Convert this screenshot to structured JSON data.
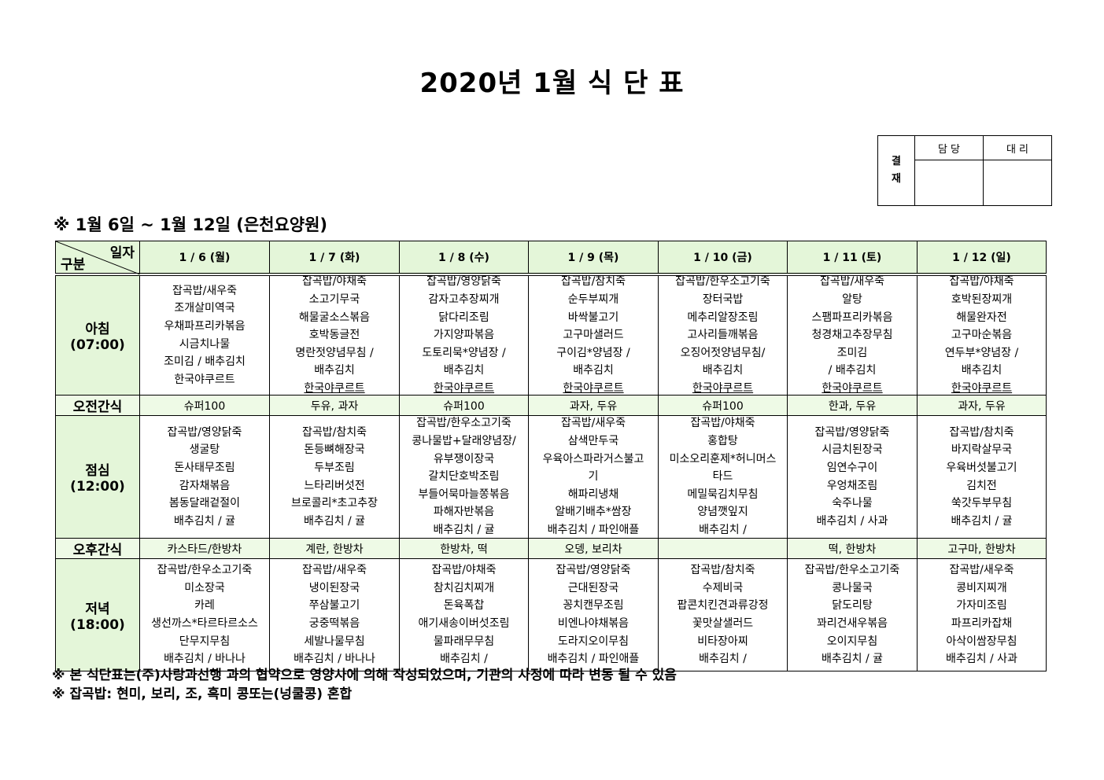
{
  "title": "2020년 1월 식 단 표",
  "approval": {
    "label": "결\n재",
    "label_chars": [
      "결",
      "재"
    ],
    "cols": [
      "담 당",
      "대 리"
    ]
  },
  "subtitle": "※ 1월 6일 ~ 1월 12일 (은천요양원)",
  "corner": {
    "top": "일자",
    "bottom": "구분"
  },
  "days": [
    "1 / 6 (월)",
    "1 / 7 (화)",
    "1 / 8 (수)",
    "1 / 9 (목)",
    "1 / 10 (금)",
    "1 / 11 (토)",
    "1 / 12 (일)"
  ],
  "rows": [
    {
      "label": "아침",
      "time": "(07:00)",
      "type": "meal",
      "underline_last": [
        false,
        true,
        true,
        true,
        true,
        true,
        true
      ],
      "cells": [
        [
          "잡곡밥/새우죽",
          "조개살미역국",
          "우채파프리카볶음",
          "시금치나물",
          "조미김 / 배추김치",
          "한국야쿠르트"
        ],
        [
          "잡곡밥/야채죽",
          "소고기무국",
          "해물굴소스볶음",
          "호박동글전",
          "명란젓양념무침 /",
          "배추김치",
          "한국야쿠르트"
        ],
        [
          "잡곡밥/영양닭죽",
          "감자고추장찌개",
          "닭다리조림",
          "가지양파볶음",
          "도토리묵*양념장 /",
          "배추김치",
          "한국야쿠르트"
        ],
        [
          "잡곡밥/참치죽",
          "순두부찌개",
          "바싹불고기",
          "고구마샐러드",
          "구이김*양념장 /",
          "배추김치",
          "한국야쿠르트"
        ],
        [
          "잡곡밥/한우소고기죽",
          "장터국밥",
          "메추리알장조림",
          "고사리들깨볶음",
          "오징어젓양념무침/",
          "배추김치",
          "한국야쿠르트"
        ],
        [
          "잡곡밥/새우죽",
          "알탕",
          "스팸파프리카볶음",
          "청경채고추장무침",
          "조미김",
          "/ 배추김치",
          "한국야쿠르트"
        ],
        [
          "잡곡밥/야채죽",
          "호박된장찌개",
          "해물완자전",
          "고구마순볶음",
          "연두부*양념장 /",
          "배추김치",
          "한국야쿠르트"
        ]
      ]
    },
    {
      "label": "오전간식",
      "type": "snack",
      "cells": [
        "슈퍼100",
        "두유, 과자",
        "슈퍼100",
        "과자, 두유",
        "슈퍼100",
        "한과, 두유",
        "과자, 두유"
      ]
    },
    {
      "label": "점심",
      "time": "(12:00)",
      "type": "meal",
      "cells": [
        [
          "잡곡밥/영양닭죽",
          "생굴탕",
          "돈사태무조림",
          "감자채볶음",
          "봄동달래겉절이",
          "배추김치 / 귤"
        ],
        [
          "잡곡밥/참치죽",
          "돈등뼈해장국",
          "두부조림",
          "느타리버섯전",
          "브로콜리*초고추장",
          "배추김치 / 귤"
        ],
        [
          "잡곡밥/한우소고기죽",
          "콩나물밥+달래양념장/",
          "유부쟁이장국",
          "갈치단호박조림",
          "부들어묵마늘쫑볶음",
          "파해자반볶음",
          "배추김치 / 귤"
        ],
        [
          "잡곡밥/새우죽",
          "삼색만두국",
          "우육아스파라거스불고",
          "기",
          "해파리냉채",
          "알배기배추*쌈장",
          "배추김치 / 파인애플"
        ],
        [
          "잡곡밥/야채죽",
          "홍합탕",
          "미소오리훈제*허니머스",
          "타드",
          "메밀묵김치무침",
          "양념깻잎지",
          "배추김치 /"
        ],
        [
          "잡곡밥/영양닭죽",
          "시금치된장국",
          "임연수구이",
          "우엉채조림",
          "숙주나물",
          "배추김치 / 사과"
        ],
        [
          "잡곡밥/참치죽",
          "바지락살무국",
          "우육버섯불고기",
          "김치전",
          "쑥갓두부무침",
          "배추김치 / 귤"
        ]
      ]
    },
    {
      "label": "오후간식",
      "type": "snack",
      "cells": [
        "카스타드/한방차",
        "계란, 한방차",
        "한방차, 떡",
        "오뎅, 보리차",
        "",
        "떡, 한방차",
        "고구마, 한방차"
      ]
    },
    {
      "label": "저녁",
      "time": "(18:00)",
      "type": "meal",
      "cells": [
        [
          "잡곡밥/한우소고기죽",
          "미소장국",
          "카레",
          "생선까스*타르타르소스",
          "단무지무침",
          "배추김치 / 바나나"
        ],
        [
          "잡곡밥/새우죽",
          "냉이된장국",
          "쭈삼불고기",
          "궁중떡볶음",
          "세발나물무침",
          "배추김치 / 바나나"
        ],
        [
          "잡곡밥/야채죽",
          "참치김치찌개",
          "돈육폭찹",
          "애기새송이버섯조림",
          "물파래무무침",
          "배추김치 /"
        ],
        [
          "잡곡밥/영양닭죽",
          "근대된장국",
          "꽁치캔무조림",
          "비엔나야채볶음",
          "도라지오이무침",
          "배추김치 / 파인애플"
        ],
        [
          "잡곡밥/참치죽",
          "수제비국",
          "팝콘치킨견과류강정",
          "꽃맛살샐러드",
          "비타장아찌",
          "배추김치 /"
        ],
        [
          "잡곡밥/한우소고기죽",
          "콩나물국",
          "닭도리탕",
          "꽈리건새우볶음",
          "오이지무침",
          "배추김치 / 귤"
        ],
        [
          "잡곡밥/새우죽",
          "콩비지찌개",
          "가자미조림",
          "파프리카잡채",
          "아삭이쌈장무침",
          "배추김치 / 사과"
        ]
      ]
    }
  ],
  "notes": [
    "※ 본 식단표는(주)사랑과선행 과의 협약으로 영양사에 의해 작성되었으며, 기관의 사정에 따라 변동 될 수 있음",
    "※ 잡곡밥: 현미, 보리, 조, 흑미 콩또는(넝쿨콩) 혼합"
  ],
  "colors": {
    "header_bg": "#e4f6d9",
    "snack_bg": "#eefae6"
  }
}
